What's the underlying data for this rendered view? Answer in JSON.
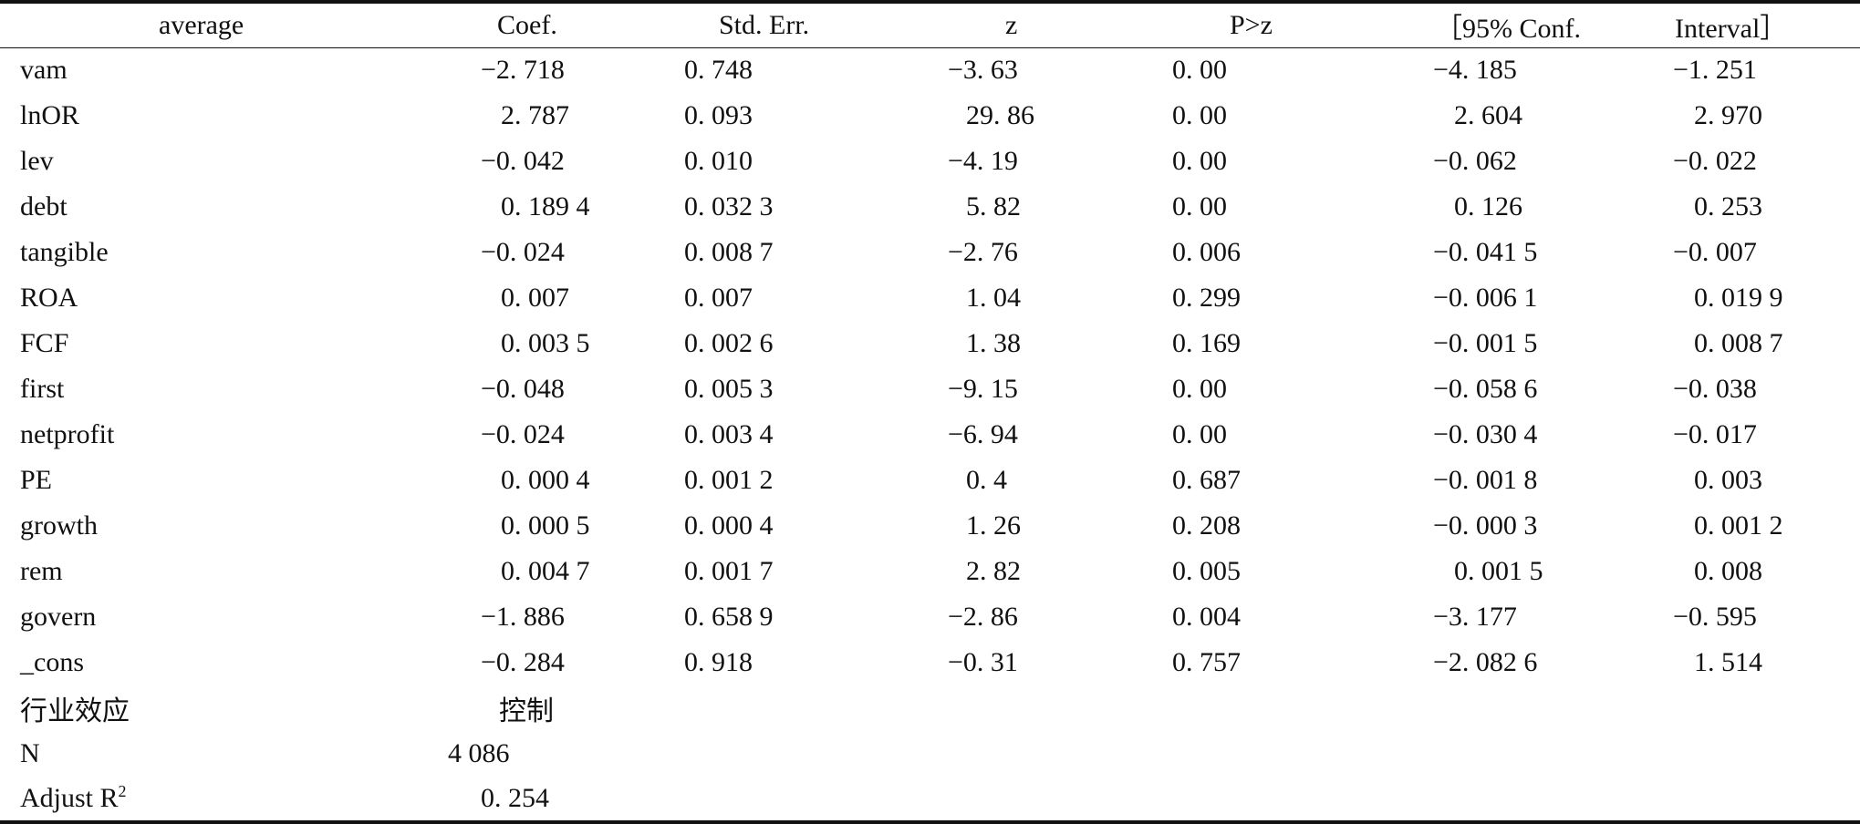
{
  "table": {
    "headers": [
      "average",
      "Coef.",
      "Std. Err.",
      "z",
      "P>z",
      "［95% Conf.",
      "Interval］"
    ],
    "rows": [
      {
        "label": "vam",
        "coef": "−2. 718",
        "se": "0. 748",
        "z": "−3. 63",
        "p": "0. 00",
        "lo": "−4. 185",
        "hi": "−1. 251"
      },
      {
        "label": "lnOR",
        "coef": "2. 787",
        "se": "0. 093",
        "z": "29. 86",
        "p": "0. 00",
        "lo": "2. 604",
        "hi": "2. 970"
      },
      {
        "label": "lev",
        "coef": "−0. 042",
        "se": "0. 010",
        "z": "−4. 19",
        "p": "0. 00",
        "lo": "−0. 062",
        "hi": "−0. 022"
      },
      {
        "label": "debt",
        "coef": "0. 189 4",
        "se": "0. 032 3",
        "z": "5. 82",
        "p": "0. 00",
        "lo": "0. 126",
        "hi": "0. 253"
      },
      {
        "label": "tangible",
        "coef": "−0. 024",
        "se": "0. 008 7",
        "z": "−2. 76",
        "p": "0. 006",
        "lo": "−0. 041 5",
        "hi": "−0. 007"
      },
      {
        "label": "ROA",
        "coef": "0. 007",
        "se": "0. 007",
        "z": "1. 04",
        "p": "0. 299",
        "lo": "−0. 006 1",
        "hi": "0. 019 9"
      },
      {
        "label": "FCF",
        "coef": "0. 003 5",
        "se": "0. 002 6",
        "z": "1. 38",
        "p": "0. 169",
        "lo": "−0. 001 5",
        "hi": "0. 008 7"
      },
      {
        "label": "first",
        "coef": "−0. 048",
        "se": "0. 005 3",
        "z": "−9. 15",
        "p": "0. 00",
        "lo": "−0. 058 6",
        "hi": "−0. 038"
      },
      {
        "label": "netprofit",
        "coef": "−0. 024",
        "se": "0. 003 4",
        "z": "−6. 94",
        "p": "0. 00",
        "lo": "−0. 030 4",
        "hi": "−0. 017"
      },
      {
        "label": "PE",
        "coef": "0. 000 4",
        "se": "0. 001 2",
        "z": "0. 4",
        "p": "0. 687",
        "lo": "−0. 001 8",
        "hi": "0. 003"
      },
      {
        "label": "growth",
        "coef": "0. 000 5",
        "se": "0. 000 4",
        "z": "1. 26",
        "p": "0. 208",
        "lo": "−0. 000 3",
        "hi": "0. 001 2"
      },
      {
        "label": "rem",
        "coef": "0. 004 7",
        "se": "0. 001 7",
        "z": "2. 82",
        "p": "0. 005",
        "lo": "0. 001 5",
        "hi": "0. 008"
      },
      {
        "label": "govern",
        "coef": "−1. 886",
        "se": "0. 658 9",
        "z": "−2. 86",
        "p": "0. 004",
        "lo": "−3. 177",
        "hi": "−0. 595"
      },
      {
        "label": "_cons",
        "coef": "−0. 284",
        "se": "0. 918",
        "z": "−0. 31",
        "p": "0. 757",
        "lo": "−2. 082 6",
        "hi": "1. 514"
      }
    ],
    "footer": {
      "industry_label": "行业效应",
      "industry_value": "控制",
      "n_label": "N",
      "n_value": "4 086",
      "r2_label": "Adjust R",
      "r2_sup": "2",
      "r2_value": "0. 254"
    }
  }
}
